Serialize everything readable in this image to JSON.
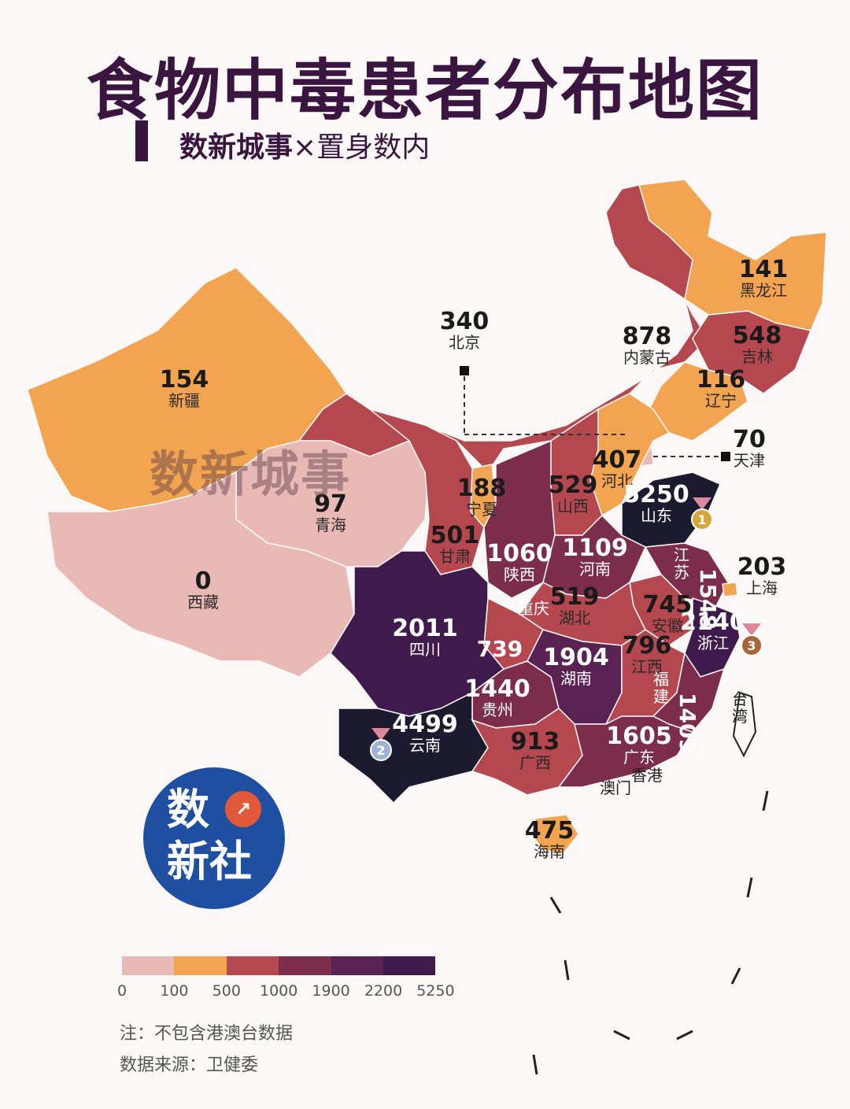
{
  "title": "食物中毒患者分布地图",
  "subtitle": {
    "brand": "数新城事",
    "separator": "×",
    "partner": "置身数内"
  },
  "watermark": "数新城事",
  "logo": {
    "line1": "数",
    "line2": "新社",
    "icon": "line-chart-icon"
  },
  "legend": {
    "colors": [
      "#e9b9b6",
      "#f2a451",
      "#b5484f",
      "#7c2d4c",
      "#5a2252",
      "#3f1a4c",
      "#1c1a2e"
    ],
    "ticks": [
      "0",
      "100",
      "500",
      "1000",
      "1900",
      "2200",
      "5250"
    ]
  },
  "note": "注：不包含港澳台数据",
  "source": "数据来源：卫健委",
  "provinces": [
    {
      "name": "黑龙江",
      "value": "141",
      "color": "#f2a451"
    },
    {
      "name": "内蒙古",
      "value": "878",
      "color": "#b5484f"
    },
    {
      "name": "吉林",
      "value": "548",
      "color": "#b5484f"
    },
    {
      "name": "辽宁",
      "value": "116",
      "color": "#f2a451"
    },
    {
      "name": "北京",
      "value": "340",
      "color": "#f2a451"
    },
    {
      "name": "天津",
      "value": "70",
      "color": "#e9b9b6"
    },
    {
      "name": "新疆",
      "value": "154",
      "color": "#f2a451"
    },
    {
      "name": "河北",
      "value": "407",
      "color": "#f2a451"
    },
    {
      "name": "山西",
      "value": "529",
      "color": "#b5484f"
    },
    {
      "name": "宁夏",
      "value": "188",
      "color": "#f2a451"
    },
    {
      "name": "山东",
      "value": "5250",
      "color": "#1c1a2e"
    },
    {
      "name": "青海",
      "value": "97",
      "color": "#e9b9b6"
    },
    {
      "name": "甘肃",
      "value": "501",
      "color": "#b5484f"
    },
    {
      "name": "陕西",
      "value": "1060",
      "color": "#7c2d4c"
    },
    {
      "name": "河南",
      "value": "1109",
      "color": "#7c2d4c"
    },
    {
      "name": "江苏",
      "value": "1548",
      "color": "#7c2d4c"
    },
    {
      "name": "上海",
      "value": "203",
      "color": "#f2a451"
    },
    {
      "name": "西藏",
      "value": "0",
      "color": "#e9b9b6"
    },
    {
      "name": "安徽",
      "value": "745",
      "color": "#b5484f"
    },
    {
      "name": "湖北",
      "value": "519",
      "color": "#b5484f"
    },
    {
      "name": "重庆",
      "value": "",
      "color": "#b5484f"
    },
    {
      "name": "四川",
      "value": "2011",
      "color": "#3f1a4c"
    },
    {
      "name": "浙江",
      "value": "2140",
      "color": "#3f1a4c"
    },
    {
      "name": "贵州",
      "value": "1440",
      "color": "#7c2d4c"
    },
    {
      "name": "湖南",
      "value": "1904",
      "color": "#5a2252"
    },
    {
      "name": "江西",
      "value": "796",
      "color": "#b5484f"
    },
    {
      "name": "福建",
      "value": "1409",
      "color": "#7c2d4c"
    },
    {
      "name": "云南",
      "value": "4499",
      "color": "#1c1a2e"
    },
    {
      "name": "广西",
      "value": "913",
      "color": "#b5484f"
    },
    {
      "name": "广东",
      "value": "1605",
      "color": "#7c2d4c"
    },
    {
      "name": "海南",
      "value": "475",
      "color": "#f2a451"
    },
    {
      "name": "香港",
      "value": "",
      "color": "#fbf8f7"
    },
    {
      "name": "澳门",
      "value": "",
      "color": "#fbf8f7"
    },
    {
      "name": "台湾",
      "value": "",
      "color": "#fbf8f7"
    }
  ],
  "extra_labels": {
    "chongqing_value": "739"
  },
  "medals": [
    "1",
    "2",
    "3"
  ]
}
